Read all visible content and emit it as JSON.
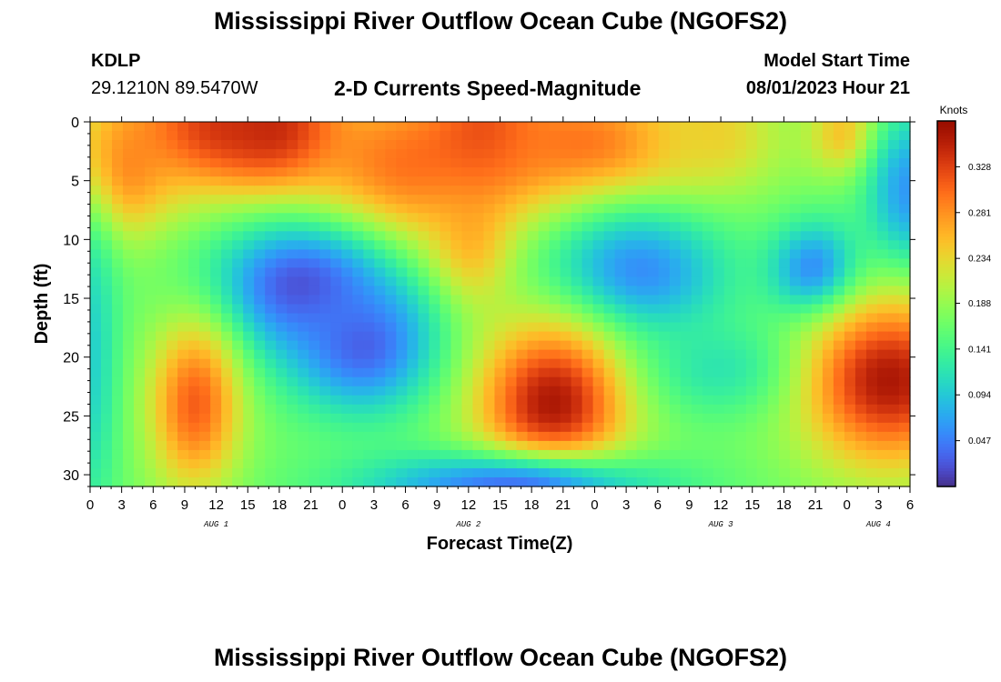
{
  "header": {
    "title": "Mississippi River Outflow Ocean Cube (NGOFS2)",
    "station_id": "KDLP",
    "coordinates": "29.1210N  89.5470W",
    "subtitle": "2-D Currents Speed-Magnitude",
    "model_start_label": "Model Start Time",
    "model_start_value": "08/01/2023 Hour 21"
  },
  "footer": {
    "title": "Mississippi River Outflow Ocean Cube (NGOFS2)"
  },
  "chart_data": {
    "type": "heatmap",
    "title": "2-D Currents Speed-Magnitude",
    "xlabel": "Forecast Time(Z)",
    "ylabel": "Depth (ft)",
    "x_range_hours": [
      0,
      78
    ],
    "x_ticks": [
      "0",
      "3",
      "6",
      "9",
      "12",
      "15",
      "18",
      "21",
      "0",
      "3",
      "6",
      "9",
      "12",
      "15",
      "18",
      "21",
      "0",
      "3",
      "6",
      "9",
      "12",
      "15",
      "18",
      "21",
      "0",
      "3",
      "6"
    ],
    "date_labels": [
      {
        "label": "AUG 1",
        "hour": 12
      },
      {
        "label": "AUG 2",
        "hour": 36
      },
      {
        "label": "AUG 3",
        "hour": 60
      },
      {
        "label": "AUG 4",
        "hour": 75
      }
    ],
    "y_range_ft": [
      0,
      31
    ],
    "y_ticks": [
      "0",
      "5",
      "10",
      "15",
      "20",
      "25",
      "30"
    ],
    "y_inverted": true,
    "colorbar": {
      "label": "Knots",
      "min": 0.0,
      "max": 0.375,
      "ticks": [
        "0.047",
        "0.094",
        "0.141",
        "0.188",
        "0.234",
        "0.281",
        "0.328"
      ],
      "tick_values": [
        0.047,
        0.094,
        0.141,
        0.188,
        0.234,
        0.281,
        0.328
      ],
      "colormap": "turbo"
    },
    "speed_field_knots": {
      "background": 0.17,
      "features": [
        {
          "hour": 12,
          "depth": 0.5,
          "sigma_hour": 7,
          "sigma_depth": 4,
          "value": 0.33
        },
        {
          "hour": 18,
          "depth": 1,
          "sigma_hour": 4,
          "sigma_depth": 3,
          "value": 0.36
        },
        {
          "hour": 30,
          "depth": 4,
          "sigma_hour": 8,
          "sigma_depth": 5,
          "value": 0.3
        },
        {
          "hour": 36,
          "depth": 10,
          "sigma_hour": 3,
          "sigma_depth": 4,
          "value": 0.27
        },
        {
          "hour": 38,
          "depth": 1,
          "sigma_hour": 4,
          "sigma_depth": 3,
          "value": 0.34
        },
        {
          "hour": 47,
          "depth": 2,
          "sigma_hour": 9,
          "sigma_depth": 4,
          "value": 0.3
        },
        {
          "hour": 59,
          "depth": 1,
          "sigma_hour": 4,
          "sigma_depth": 3,
          "value": 0.24
        },
        {
          "hour": 72,
          "depth": 1,
          "sigma_hour": 2.5,
          "sigma_depth": 2.5,
          "value": 0.26
        },
        {
          "hour": 2,
          "depth": 4,
          "sigma_hour": 4,
          "sigma_depth": 4,
          "value": 0.3
        },
        {
          "hour": 20,
          "depth": 14,
          "sigma_hour": 6,
          "sigma_depth": 4,
          "value": 0.02
        },
        {
          "hour": 26,
          "depth": 19,
          "sigma_hour": 5,
          "sigma_depth": 4,
          "value": 0.03
        },
        {
          "hour": 52,
          "depth": 13,
          "sigma_hour": 6,
          "sigma_depth": 4,
          "value": 0.05
        },
        {
          "hour": 69,
          "depth": 13,
          "sigma_hour": 3,
          "sigma_depth": 3,
          "value": 0.03
        },
        {
          "hour": 78,
          "depth": 6,
          "sigma_hour": 3,
          "sigma_depth": 5,
          "value": 0.06
        },
        {
          "hour": 62,
          "depth": 21,
          "sigma_hour": 8,
          "sigma_depth": 3,
          "value": 0.11
        },
        {
          "hour": 0,
          "depth": 20,
          "sigma_hour": 2,
          "sigma_depth": 10,
          "value": 0.1
        },
        {
          "hour": 10,
          "depth": 24,
          "sigma_hour": 3,
          "sigma_depth": 5,
          "value": 0.31
        },
        {
          "hour": 44,
          "depth": 24,
          "sigma_hour": 5,
          "sigma_depth": 5,
          "value": 0.36
        },
        {
          "hour": 76,
          "depth": 22,
          "sigma_hour": 6,
          "sigma_depth": 5,
          "value": 0.36
        },
        {
          "hour": 40,
          "depth": 31,
          "sigma_hour": 10,
          "sigma_depth": 2,
          "value": 0.04
        }
      ]
    }
  }
}
